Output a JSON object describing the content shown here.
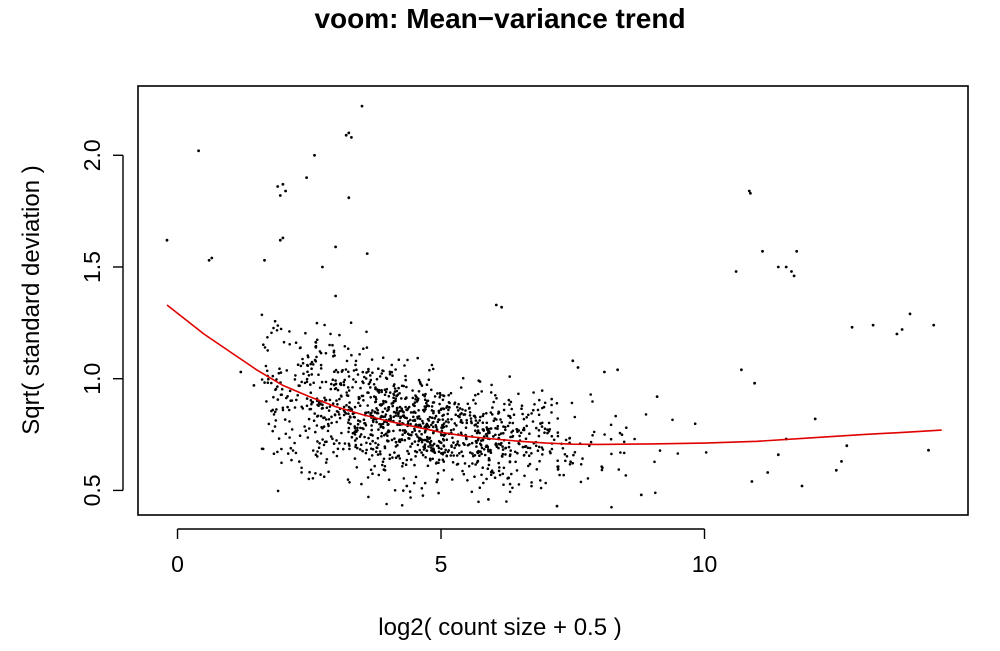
{
  "chart_data": {
    "type": "scatter",
    "title": "voom: Mean−variance trend",
    "xlabel": "log2( count size + 0.5 )",
    "ylabel": "Sqrt( standard deviation )",
    "xlim": [
      -0.75,
      15.0
    ],
    "ylim": [
      0.39,
      2.31
    ],
    "xticks": [
      0,
      5,
      10
    ],
    "xtick_labels": [
      "0",
      "5",
      "10"
    ],
    "yticks": [
      0.5,
      1.0,
      1.5,
      2.0
    ],
    "ytick_labels": [
      "0.5",
      "1.0",
      "1.5",
      "2.0"
    ],
    "grid": false,
    "legend": "none",
    "series": [
      {
        "kind": "points",
        "color": "#000000",
        "points": [
          [
            -0.2,
            1.62
          ],
          [
            0.4,
            2.02
          ],
          [
            0.6,
            1.53
          ],
          [
            0.65,
            1.54
          ],
          [
            1.2,
            1.03
          ],
          [
            1.45,
            0.97
          ],
          [
            1.65,
            1.53
          ],
          [
            1.9,
            1.86
          ],
          [
            1.95,
            1.82
          ],
          [
            2.0,
            1.87
          ],
          [
            2.05,
            1.84
          ],
          [
            1.95,
            1.62
          ],
          [
            2.0,
            1.63
          ],
          [
            2.45,
            1.9
          ],
          [
            2.6,
            2.0
          ],
          [
            2.75,
            1.5
          ],
          [
            3.0,
            1.59
          ],
          [
            3.2,
            2.09
          ],
          [
            3.25,
            2.1
          ],
          [
            3.3,
            2.08
          ],
          [
            3.25,
            1.81
          ],
          [
            3.5,
            2.22
          ],
          [
            3.6,
            1.56
          ],
          [
            3.0,
            1.37
          ],
          [
            6.05,
            1.33
          ],
          [
            6.15,
            1.32
          ],
          [
            10.6,
            1.48
          ],
          [
            10.85,
            1.84
          ],
          [
            10.87,
            1.83
          ],
          [
            11.1,
            1.57
          ],
          [
            11.4,
            1.5
          ],
          [
            11.55,
            1.5
          ],
          [
            11.65,
            1.48
          ],
          [
            11.75,
            1.57
          ],
          [
            11.7,
            1.46
          ],
          [
            10.7,
            1.04
          ],
          [
            10.95,
            0.98
          ],
          [
            12.1,
            0.82
          ],
          [
            12.8,
            1.23
          ],
          [
            13.2,
            1.24
          ],
          [
            13.65,
            1.2
          ],
          [
            13.75,
            1.22
          ],
          [
            13.9,
            1.29
          ],
          [
            14.35,
            1.24
          ],
          [
            14.25,
            0.68
          ],
          [
            12.5,
            0.59
          ],
          [
            12.7,
            0.7
          ],
          [
            11.55,
            0.73
          ],
          [
            11.4,
            0.66
          ],
          [
            11.85,
            0.52
          ],
          [
            11.2,
            0.58
          ],
          [
            10.9,
            0.54
          ],
          [
            12.6,
            0.63
          ],
          [
            8.8,
            0.48
          ],
          [
            7.2,
            0.43
          ],
          [
            5.9,
            0.46
          ],
          [
            4.35,
            0.52
          ],
          [
            7.5,
            1.08
          ],
          [
            7.6,
            1.05
          ],
          [
            8.1,
            1.03
          ],
          [
            8.35,
            1.04
          ],
          [
            9.1,
            0.92
          ]
        ]
      },
      {
        "kind": "line",
        "name": "",
        "color": "#e00000",
        "x": [
          -0.2,
          0.5,
          1.0,
          1.5,
          2.0,
          2.5,
          3.0,
          3.5,
          4.0,
          4.5,
          5.0,
          5.5,
          6.0,
          6.5,
          7.0,
          7.5,
          8.0,
          9.0,
          10.0,
          11.0,
          12.0,
          13.0,
          14.0,
          14.5
        ],
        "y": [
          1.33,
          1.2,
          1.12,
          1.04,
          0.97,
          0.92,
          0.875,
          0.84,
          0.81,
          0.785,
          0.76,
          0.742,
          0.73,
          0.72,
          0.712,
          0.707,
          0.706,
          0.708,
          0.712,
          0.72,
          0.735,
          0.75,
          0.763,
          0.77
        ]
      }
    ]
  }
}
